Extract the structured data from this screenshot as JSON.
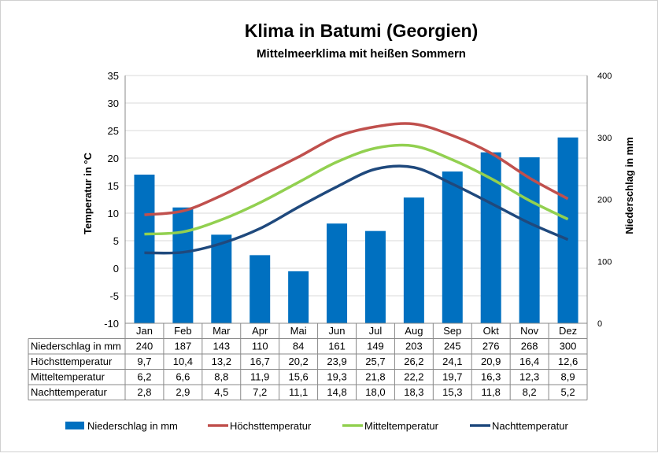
{
  "chart_data": {
    "type": "bar+line",
    "title": "Klima in Batumi (Georgien)",
    "subtitle": "Mittelmeerklima mit heißen Sommern",
    "ylabel": "Temperatur in °C",
    "y2label": "Niederschlag in mm",
    "ylim": [
      -10,
      35
    ],
    "y2lim": [
      0,
      400
    ],
    "yticks": [
      "35",
      "30",
      "25",
      "20",
      "15",
      "10",
      "5",
      "0",
      "-5",
      "-10"
    ],
    "y2ticks": [
      "400",
      "300",
      "200",
      "100",
      "0"
    ],
    "categories": [
      "Jan",
      "Feb",
      "Mar",
      "Apr",
      "Mai",
      "Jun",
      "Jul",
      "Aug",
      "Sep",
      "Okt",
      "Nov",
      "Dez"
    ],
    "series": [
      {
        "name": "Niederschlag in mm",
        "type": "bar",
        "axis": "right",
        "color": "#0070c0",
        "values": [
          240,
          187,
          143,
          110,
          84,
          161,
          149,
          203,
          245,
          276,
          268,
          300
        ],
        "labels": [
          "240",
          "187",
          "143",
          "110",
          "84",
          "161",
          "149",
          "203",
          "245",
          "276",
          "268",
          "300"
        ]
      },
      {
        "name": "Höchsttemperatur",
        "type": "line",
        "axis": "left",
        "color": "#c0504d",
        "values": [
          9.7,
          10.4,
          13.2,
          16.7,
          20.2,
          23.9,
          25.7,
          26.2,
          24.1,
          20.9,
          16.4,
          12.6
        ],
        "labels": [
          "9,7",
          "10,4",
          "13,2",
          "16,7",
          "20,2",
          "23,9",
          "25,7",
          "26,2",
          "24,1",
          "20,9",
          "16,4",
          "12,6"
        ]
      },
      {
        "name": "Mitteltemperatur",
        "type": "line",
        "axis": "left",
        "color": "#92d050",
        "values": [
          6.2,
          6.6,
          8.8,
          11.9,
          15.6,
          19.3,
          21.8,
          22.2,
          19.7,
          16.3,
          12.3,
          8.9
        ],
        "labels": [
          "6,2",
          "6,6",
          "8,8",
          "11,9",
          "15,6",
          "19,3",
          "21,8",
          "22,2",
          "19,7",
          "16,3",
          "12,3",
          "8,9"
        ]
      },
      {
        "name": "Nachttemperatur",
        "type": "line",
        "axis": "left",
        "color": "#1f497d",
        "values": [
          2.8,
          2.9,
          4.5,
          7.2,
          11.1,
          14.8,
          18.0,
          18.3,
          15.3,
          11.8,
          8.2,
          5.2
        ],
        "labels": [
          "2,8",
          "2,9",
          "4,5",
          "7,2",
          "11,1",
          "14,8",
          "18,0",
          "18,3",
          "15,3",
          "11,8",
          "8,2",
          "5,2"
        ]
      }
    ],
    "legend": "bottom"
  }
}
